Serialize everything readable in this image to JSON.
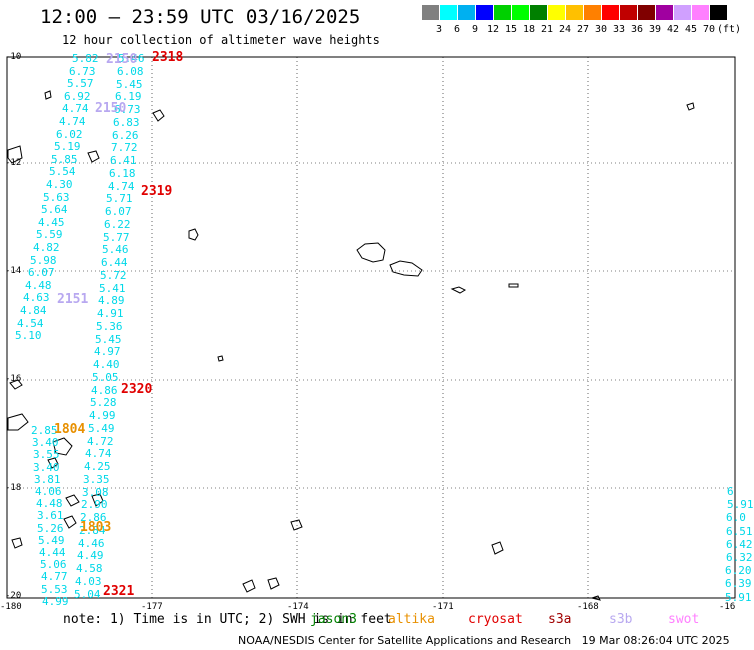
{
  "title": "12:00 — 23:59 UTC 03/16/2025",
  "subtitle": "12 hour collection of altimeter wave heights",
  "colorbar": {
    "unit": "(ft)",
    "colors": [
      "#808080",
      "#00ffff",
      "#00b0f0",
      "#0000ff",
      "#00d000",
      "#00ff00",
      "#008000",
      "#ffff00",
      "#ffc000",
      "#ff8000",
      "#ff0000",
      "#c00000",
      "#800000",
      "#a000a0",
      "#d0a0ff",
      "#ff80ff",
      "#000000"
    ],
    "labels": [
      "3",
      "6",
      "9",
      "12",
      "15",
      "18",
      "21",
      "24",
      "27",
      "30",
      "33",
      "36",
      "39",
      "42",
      "45",
      "70"
    ]
  },
  "axes": {
    "lat_labels": [
      "-10",
      "-12",
      "-14",
      "-16",
      "-18",
      "-20"
    ],
    "lon_labels": [
      "-180",
      "-177",
      "-174",
      "-171",
      "-168",
      "-16"
    ]
  },
  "passes": [
    {
      "label": "2318",
      "color": "#e00000"
    },
    {
      "label": "2319",
      "color": "#e00000"
    },
    {
      "label": "2320",
      "color": "#e00000"
    },
    {
      "label": "2321",
      "color": "#e00000"
    },
    {
      "label": "2150",
      "color": "#b8a8f0"
    },
    {
      "label": "2150",
      "color": "#b8a8f0"
    },
    {
      "label": "2151",
      "color": "#b8a8f0"
    },
    {
      "label": "1804",
      "color": "#e89000"
    },
    {
      "label": "1803",
      "color": "#e89000"
    }
  ],
  "track_a": [
    "5.82",
    "6.73",
    "5.57",
    "6.92",
    "4.74",
    "4.74",
    "6.02",
    "5.19",
    "5.85",
    "5.54",
    "4.30",
    "5.63",
    "5.64",
    "4.45",
    "5.59",
    "4.82",
    "5.98",
    "6.07",
    "4.48",
    "4.63",
    "4.84",
    "4.54",
    "5.10"
  ],
  "track_b": [
    "5.46",
    "6.08",
    "5.45",
    "6.19",
    "6.73",
    "6.83",
    "6.26",
    "7.72",
    "6.41",
    "6.18",
    "4.74",
    "5.71",
    "6.07",
    "6.22",
    "5.77",
    "5.46",
    "6.44",
    "5.72",
    "5.41",
    "4.89",
    "4.91",
    "5.36",
    "5.45",
    "4.97",
    "4.40",
    "5.05",
    "4.86",
    "5.28",
    "4.99",
    "5.49",
    "4.72",
    "4.74",
    "4.25",
    "3.35",
    "3.08",
    "2.90",
    "2.86",
    "2.84",
    "4.46",
    "4.49",
    "4.58",
    "4.03",
    "5.04"
  ],
  "track_c": [
    "2.85",
    "3.40",
    "3.55",
    "3.40",
    "3.81",
    "4.06",
    "4.48",
    "3.61",
    "5.26",
    "5.49",
    "4.44",
    "5.06",
    "4.77",
    "5.53",
    "4.99"
  ],
  "track_d": [
    "6",
    "5.91",
    "6.0",
    "6.51",
    "6.42",
    "6.32",
    "6.20",
    "6.39",
    "5.91"
  ],
  "note": "note: 1) Time is in UTC; 2) SWH is in feet",
  "legend": [
    {
      "label": "jason3",
      "color": "#008000"
    },
    {
      "label": "altika",
      "color": "#e89000"
    },
    {
      "label": "cryosat",
      "color": "#e00000"
    },
    {
      "label": "s3a",
      "color": "#a00000"
    },
    {
      "label": "s3b",
      "color": "#b8a8f0"
    },
    {
      "label": "swot",
      "color": "#ff80ff"
    }
  ],
  "credit": "NOAA/NESDIS Center for Satellite Applications and Research",
  "timestamp": "19 Mar 08:26:04 UTC 2025"
}
